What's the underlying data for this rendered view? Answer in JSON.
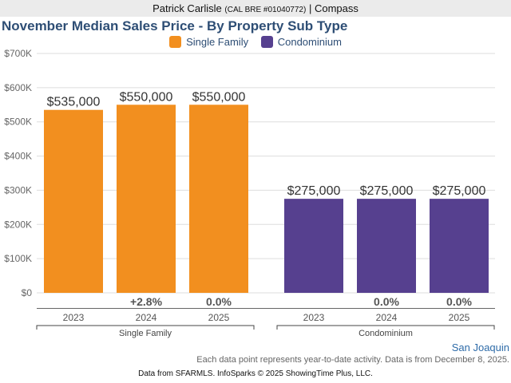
{
  "header": {
    "agent_name": "Patrick Carlisle",
    "license": "(CAL BRE #01040772)",
    "separator": "|",
    "brokerage": "Compass"
  },
  "colors": {
    "single_family": "#f28f1f",
    "condominium": "#56408f",
    "title": "#2e4e75",
    "region": "#2e6ba8"
  },
  "chart_data": {
    "type": "bar",
    "title": "November Median Sales Price - By Property Sub Type",
    "xlabel": "",
    "ylabel": "",
    "ylim": [
      0,
      700000
    ],
    "yticks": [
      0,
      100000,
      200000,
      300000,
      400000,
      500000,
      600000,
      700000
    ],
    "ytick_labels": [
      "$0",
      "$100K",
      "$200K",
      "$300K",
      "$400K",
      "$500K",
      "$600K",
      "$700K"
    ],
    "grid": true,
    "legend_position": "top-center",
    "legend": [
      "Single Family",
      "Condominium"
    ],
    "groups": [
      {
        "name": "Single Family",
        "categories": [
          "2023",
          "2024",
          "2025"
        ],
        "values": [
          535000,
          550000,
          550000
        ],
        "value_labels": [
          "$535,000",
          "$550,000",
          "$550,000"
        ],
        "pct_change": [
          "",
          "+2.8%",
          "0.0%"
        ]
      },
      {
        "name": "Condominium",
        "categories": [
          "2023",
          "2024",
          "2025"
        ],
        "values": [
          275000,
          275000,
          275000
        ],
        "value_labels": [
          "$275,000",
          "$275,000",
          "$275,000"
        ],
        "pct_change": [
          "",
          "0.0%",
          "0.0%"
        ]
      }
    ]
  },
  "footer": {
    "region": "San Joaquin",
    "note": "Each data point represents year-to-date activity. Data is from December 8, 2025.",
    "credit": "Data from SFARMLS. InfoSparks © 2025 ShowingTime Plus, LLC."
  }
}
